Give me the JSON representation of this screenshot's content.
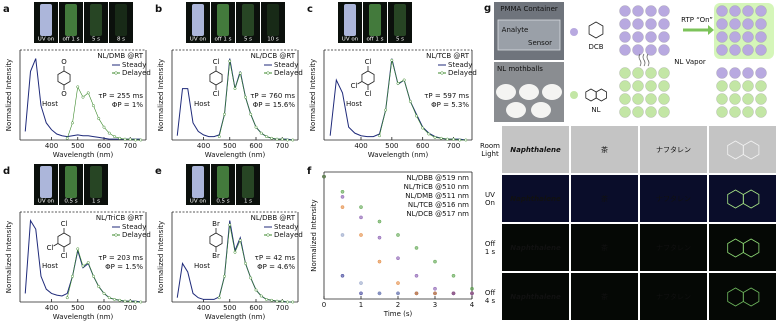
{
  "chart_data": [
    {
      "type": "line",
      "label": "a",
      "title": "NL/DMB @RT",
      "tau": "τP = 255 ms",
      "phi": "ΦP = 1%",
      "host": "Host",
      "substituents": [
        "O",
        "O"
      ],
      "inset_labels": [
        "UV on",
        "off 1 s",
        "5 s",
        "8 s"
      ],
      "xlabel": "Wavelength (nm)",
      "ylabel": "Normalized Intensity",
      "xlim": [
        280,
        760
      ],
      "ylim": [
        0,
        1.05
      ],
      "xticks": [
        400,
        500,
        600,
        700
      ],
      "x": [
        300,
        320,
        340,
        360,
        380,
        400,
        420,
        440,
        460,
        480,
        500,
        520,
        540,
        560,
        580,
        600,
        620,
        640,
        660,
        680,
        700,
        720,
        740
      ],
      "series": [
        {
          "name": "Steady",
          "color": "#1f2a7a",
          "values": [
            0.1,
            0.8,
            0.95,
            0.4,
            0.2,
            0.12,
            0.07,
            0.05,
            0.04,
            0.05,
            0.06,
            0.05,
            0.05,
            0.04,
            0.03,
            0.02,
            0.01,
            0.01,
            0.01,
            0.01,
            0.01,
            0.01,
            0.01
          ]
        },
        {
          "name": "Delayed",
          "color": "#3d8a2c",
          "marker": "circle",
          "values": [
            null,
            null,
            null,
            null,
            null,
            null,
            null,
            null,
            0.02,
            0.2,
            0.62,
            0.5,
            0.55,
            0.4,
            0.25,
            0.15,
            0.08,
            0.04,
            0.02,
            0.01,
            0.01,
            0,
            0
          ]
        }
      ]
    },
    {
      "type": "line",
      "label": "b",
      "title": "NL/DCB @RT",
      "tau": "τP = 760 ms",
      "phi": "ΦP = 15.6%",
      "host": "Host",
      "substituents": [
        "Cl",
        "Cl"
      ],
      "inset_labels": [
        "UV on",
        "off 1 s",
        "5 s",
        "10 s"
      ],
      "xlabel": "Wavelength (nm)",
      "ylabel": "Normalized Intensity",
      "xlim": [
        280,
        760
      ],
      "ylim": [
        0,
        1.05
      ],
      "xticks": [
        400,
        500,
        600,
        700
      ],
      "x": [
        300,
        320,
        340,
        360,
        380,
        400,
        420,
        440,
        460,
        480,
        500,
        520,
        540,
        560,
        580,
        600,
        620,
        640,
        660,
        680,
        700,
        720,
        740
      ],
      "series": [
        {
          "name": "Steady",
          "color": "#1f2a7a",
          "values": [
            0.05,
            0.6,
            0.6,
            0.2,
            0.1,
            0.06,
            0.04,
            0.04,
            0.06,
            0.3,
            0.95,
            0.6,
            0.8,
            0.5,
            0.3,
            0.15,
            0.08,
            0.04,
            0.02,
            0.01,
            0.01,
            0.01,
            0
          ]
        },
        {
          "name": "Delayed",
          "color": "#3d8a2c",
          "marker": "circle",
          "values": [
            null,
            null,
            null,
            null,
            null,
            null,
            null,
            null,
            0.04,
            0.3,
            0.92,
            0.6,
            0.78,
            0.5,
            0.3,
            0.15,
            0.08,
            0.04,
            0.02,
            0.01,
            0.01,
            0,
            0
          ]
        }
      ]
    },
    {
      "type": "line",
      "label": "c",
      "title": "NL/TCB @RT",
      "tau": "τP = 597 ms",
      "phi": "ΦP = 5.3%",
      "host": "Host",
      "substituents": [
        "Cl",
        "Cl",
        "Cl"
      ],
      "inset_labels": [
        "UV on",
        "off 1 s",
        "5 s"
      ],
      "xlabel": "Wavelength (nm)",
      "ylabel": "Normalized Intensity",
      "xlim": [
        280,
        760
      ],
      "ylim": [
        0,
        1.05
      ],
      "xticks": [
        400,
        500,
        600,
        700
      ],
      "x": [
        300,
        320,
        340,
        360,
        380,
        400,
        420,
        440,
        460,
        480,
        500,
        520,
        540,
        560,
        580,
        600,
        620,
        640,
        660,
        680,
        700,
        720,
        740
      ],
      "series": [
        {
          "name": "Steady",
          "color": "#1f2a7a",
          "values": [
            0.05,
            0.7,
            0.55,
            0.15,
            0.08,
            0.05,
            0.04,
            0.04,
            0.07,
            0.35,
            0.95,
            0.65,
            0.7,
            0.45,
            0.3,
            0.15,
            0.08,
            0.04,
            0.02,
            0.01,
            0.01,
            0.01,
            0
          ]
        },
        {
          "name": "Delayed",
          "color": "#3d8a2c",
          "marker": "circle",
          "values": [
            null,
            null,
            null,
            null,
            null,
            null,
            null,
            null,
            0.05,
            0.35,
            0.93,
            0.66,
            0.7,
            0.45,
            0.28,
            0.14,
            0.07,
            0.03,
            0.02,
            0.01,
            0.01,
            0,
            0
          ]
        }
      ]
    },
    {
      "type": "line",
      "label": "d",
      "title": "NL/TriCB @RT",
      "tau": "τP = 203 ms",
      "phi": "ΦP = 1.5%",
      "host": "Host",
      "substituents": [
        "Cl",
        "Cl",
        "Cl"
      ],
      "inset_labels": [
        "UV on",
        "0.5 s",
        "1 s"
      ],
      "xlabel": "Wavelength (nm)",
      "ylabel": "Normalized Intensity",
      "xlim": [
        280,
        760
      ],
      "ylim": [
        0,
        1.05
      ],
      "xticks": [
        400,
        500,
        600,
        700
      ],
      "x": [
        300,
        320,
        340,
        360,
        380,
        400,
        420,
        440,
        460,
        480,
        500,
        520,
        540,
        560,
        580,
        600,
        620,
        640,
        660,
        680,
        700,
        720,
        740
      ],
      "series": [
        {
          "name": "Steady",
          "color": "#1f2a7a",
          "values": [
            0.1,
            0.95,
            0.85,
            0.3,
            0.15,
            0.1,
            0.08,
            0.07,
            0.1,
            0.3,
            0.6,
            0.4,
            0.45,
            0.3,
            0.18,
            0.1,
            0.05,
            0.03,
            0.02,
            0.01,
            0.01,
            0.01,
            0
          ]
        },
        {
          "name": "Delayed",
          "color": "#3d8a2c",
          "marker": "circle",
          "values": [
            null,
            null,
            null,
            null,
            null,
            null,
            null,
            null,
            0.05,
            0.3,
            0.62,
            0.42,
            0.46,
            0.3,
            0.18,
            0.1,
            0.05,
            0.03,
            0.02,
            0.01,
            0.01,
            0,
            0
          ]
        }
      ]
    },
    {
      "type": "line",
      "label": "e",
      "title": "NL/DBB @RT",
      "tau": "τP = 42 ms",
      "phi": "ΦP = 4.6%",
      "host": "Host",
      "substituents": [
        "Br",
        "Br"
      ],
      "inset_labels": [
        "UV on",
        "0.5 s",
        "1 s"
      ],
      "xlabel": "Wavelength (nm)",
      "ylabel": "Normalized Intensity",
      "xlim": [
        280,
        760
      ],
      "ylim": [
        0,
        1.05
      ],
      "xticks": [
        400,
        500,
        600,
        700
      ],
      "x": [
        300,
        320,
        340,
        360,
        380,
        400,
        420,
        440,
        460,
        480,
        500,
        520,
        540,
        560,
        580,
        600,
        620,
        640,
        660,
        680,
        700,
        720,
        740
      ],
      "series": [
        {
          "name": "Steady",
          "color": "#1f2a7a",
          "values": [
            0.05,
            0.45,
            0.35,
            0.1,
            0.05,
            0.03,
            0.03,
            0.03,
            0.06,
            0.3,
            0.95,
            0.6,
            0.75,
            0.45,
            0.28,
            0.14,
            0.07,
            0.03,
            0.02,
            0.01,
            0.01,
            0,
            0
          ]
        },
        {
          "name": "Delayed",
          "color": "#3d8a2c",
          "marker": "circle",
          "values": [
            null,
            null,
            null,
            null,
            null,
            null,
            null,
            null,
            0.05,
            0.3,
            0.9,
            0.58,
            0.72,
            0.45,
            0.28,
            0.14,
            0.07,
            0.03,
            0.02,
            0.01,
            0.01,
            0,
            0
          ]
        }
      ]
    },
    {
      "type": "scatter",
      "label": "f",
      "xlabel": "Time (s)",
      "ylabel": "Normalized Intensity",
      "log_y": true,
      "xlim": [
        0,
        4
      ],
      "ylim": [
        0.008,
        1.2
      ],
      "xticks": [
        0,
        1,
        2,
        3,
        4
      ],
      "x": [
        0,
        0.5,
        1,
        1.5,
        2,
        2.5,
        3,
        3.5,
        4
      ],
      "series": [
        {
          "name": "NL/DBB @519 nm",
          "color": "#2b2f8f",
          "values": [
            1,
            0.02,
            0.01,
            0.01,
            0.01,
            0.01,
            0.01,
            0.01,
            0.01
          ]
        },
        {
          "name": "NL/TriCB @510 nm",
          "color": "#8a9bc2",
          "values": [
            1,
            0.1,
            0.015,
            0.01,
            0.01,
            0.01,
            0.01,
            0.01,
            0.01
          ]
        },
        {
          "name": "NL/DMB @511 nm",
          "color": "#e07b2a",
          "values": [
            1,
            0.3,
            0.1,
            0.035,
            0.015,
            0.01,
            0.01,
            0.01,
            0.01
          ]
        },
        {
          "name": "NL/TCB @516 nm",
          "color": "#7b4aa8",
          "values": [
            1,
            0.45,
            0.2,
            0.09,
            0.04,
            0.02,
            0.012,
            0.01,
            0.01
          ]
        },
        {
          "name": "NL/DCB @517 nm",
          "color": "#4a9a3a",
          "values": [
            1,
            0.55,
            0.3,
            0.17,
            0.1,
            0.06,
            0.035,
            0.02,
            0.012
          ]
        }
      ]
    }
  ],
  "panel_g": {
    "label": "g",
    "container": "PMMA Container",
    "analyte": "Analyte",
    "sensor": "Sensor",
    "mothballs": "NL mothballs",
    "dcb": "DCB",
    "rtp": "RTP “On”",
    "vapor": "NL Vapor",
    "nl": "NL",
    "rows": [
      [
        "Room",
        "Light"
      ],
      [
        "UV",
        "On"
      ],
      [
        "Off",
        "1 s"
      ],
      [
        "Off",
        "4 s"
      ]
    ],
    "samples": [
      "Naphthalene",
      "茶",
      "ナフタレン"
    ]
  }
}
